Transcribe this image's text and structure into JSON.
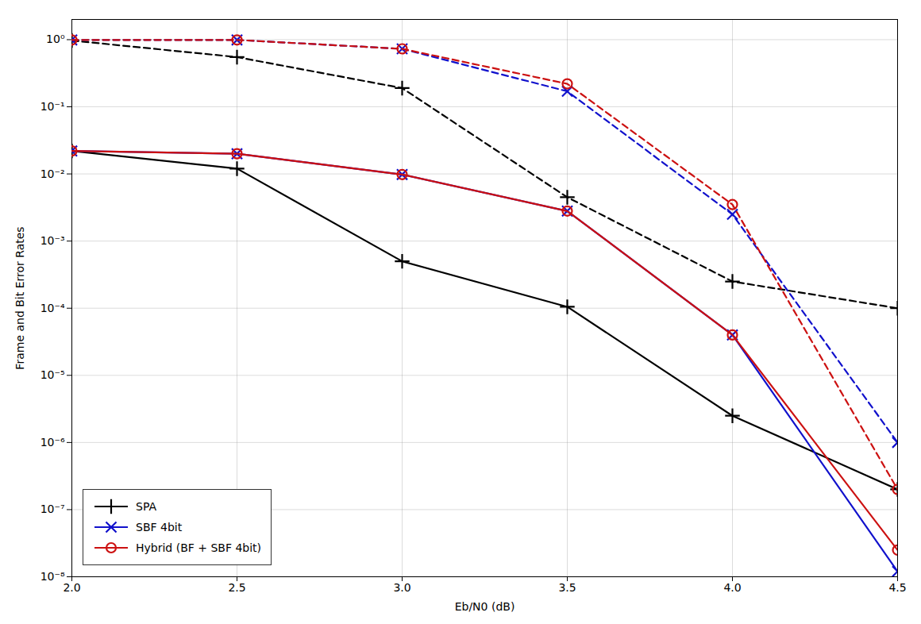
{
  "chart_data": {
    "type": "line",
    "log": "y",
    "xlabel": "Eb/N0 (dB)",
    "ylabel": "Frame and Bit Error Rates",
    "x": [
      2.0,
      2.5,
      3.0,
      3.5,
      4.0,
      4.5
    ],
    "series": [
      {
        "name": "SPA",
        "color": "#000000",
        "marker": "plus",
        "line_style": "solid",
        "values": [
          0.022,
          0.012,
          0.0005,
          0.000105,
          2.5e-06,
          2e-07
        ]
      },
      {
        "name": "SBF 4bit",
        "color": "#1111cc",
        "marker": "times",
        "line_style": "solid",
        "values": [
          0.022,
          0.02,
          0.0098,
          0.0028,
          4e-05,
          1.2e-08
        ]
      },
      {
        "name": "Hybrid (BF + SBF 4bit)",
        "color": "#cc1111",
        "marker": "circle",
        "line_style": "solid",
        "values": [
          0.022,
          0.02,
          0.0098,
          0.0028,
          4e-05,
          2.5e-08
        ]
      },
      {
        "color": "#000000",
        "marker": "plus",
        "line_style": "dashed",
        "values": [
          0.97,
          0.55,
          0.19,
          0.0045,
          0.00025,
          0.0001
        ]
      },
      {
        "color": "#1111cc",
        "marker": "times",
        "line_style": "dashed",
        "values": [
          0.99,
          0.99,
          0.73,
          0.17,
          0.0025,
          1e-06
        ]
      },
      {
        "color": "#cc1111",
        "marker": "circle",
        "line_style": "dashed",
        "values": [
          0.99,
          0.99,
          0.73,
          0.22,
          0.0035,
          2e-07
        ]
      }
    ],
    "xlim": [
      2.0,
      4.5
    ],
    "xticks": [
      {
        "value": 2.0,
        "label": "2.0"
      },
      2.5,
      {
        "value": 3.0,
        "label": "3.0"
      },
      3.5,
      {
        "value": 4.0,
        "label": "4.0"
      },
      4.5
    ],
    "ylim": [
      1e-08,
      2.0
    ],
    "yticks": [
      {
        "value": 1e-08,
        "label": "10⁻⁸"
      },
      {
        "value": 1e-07,
        "label": "10⁻⁷"
      },
      {
        "value": 1e-06,
        "label": "10⁻⁶"
      },
      {
        "value": 1e-05,
        "label": "10⁻⁵"
      },
      {
        "value": 0.0001,
        "label": "10⁻⁴"
      },
      {
        "value": 0.001,
        "label": "10⁻³"
      },
      {
        "value": 0.01,
        "label": "10⁻²"
      },
      {
        "value": 0.1,
        "label": "10⁻¹"
      },
      {
        "value": 1,
        "label": "10⁰"
      }
    ],
    "grid": true,
    "legend": "lower left"
  }
}
